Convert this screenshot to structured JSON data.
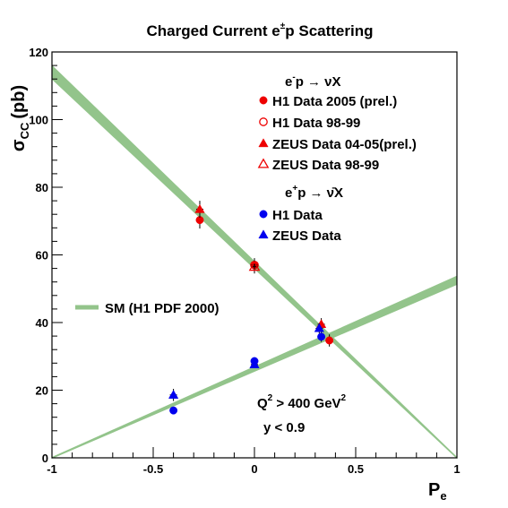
{
  "chart_data": {
    "type": "scatter",
    "title_main": "Charged Current e",
    "title_sup": "±",
    "title_rest": "p Scattering",
    "xlabel_main": "P",
    "xlabel_sub": "e",
    "ylabel_main": "σ",
    "ylabel_sub": "CC",
    "ylabel_unit": "(pb)",
    "xlim": [
      -1,
      1
    ],
    "ylim": [
      0,
      120
    ],
    "xticks": [
      {
        "value": -1,
        "label": "-1"
      },
      {
        "value": -0.5,
        "label": "-0.5"
      },
      {
        "value": 0,
        "label": "0"
      },
      {
        "value": 0.5,
        "label": "0.5"
      },
      {
        "value": 1,
        "label": "1"
      }
    ],
    "yticks": [
      {
        "value": 0,
        "label": "0"
      },
      {
        "value": 20,
        "label": "20"
      },
      {
        "value": 40,
        "label": "40"
      },
      {
        "value": 60,
        "label": "60"
      },
      {
        "value": 80,
        "label": "80"
      },
      {
        "value": 100,
        "label": "100"
      },
      {
        "value": 120,
        "label": "120"
      }
    ],
    "sm_band_label": "SM (H1 PDF 2000)",
    "sm_band_color": "#93c48b",
    "sm_bands": [
      {
        "points": [
          [
            -1,
            114
          ],
          [
            1,
            0
          ]
        ],
        "width_at_start": 4,
        "width_at_end": 0.3
      },
      {
        "points": [
          [
            -1,
            0
          ],
          [
            1,
            52.5
          ]
        ],
        "width_at_start": 0.3,
        "width_at_end": 2.5
      }
    ],
    "legend_header_eminus": {
      "pre": "e",
      "sup": "-",
      "rest": "p → νX"
    },
    "legend_header_eplus": {
      "pre": "e",
      "sup": "+",
      "rest": "p → ν̄X"
    },
    "series": [
      {
        "name": "H1 Data 2005 (prel.)",
        "marker": "circle",
        "filled": true,
        "color": "#ee0000",
        "points": [
          {
            "x": -0.27,
            "y": 70.3,
            "err": 2.5
          },
          {
            "x": 0.0,
            "y": 57.0,
            "err": 2.0
          },
          {
            "x": 0.37,
            "y": 34.7,
            "err": 1.8
          }
        ]
      },
      {
        "name": "H1 Data 98-99",
        "marker": "circle",
        "filled": false,
        "color": "#ee0000",
        "points": [
          {
            "x": 0.0,
            "y": 57.0,
            "err": 2.0
          }
        ]
      },
      {
        "name": "ZEUS Data 04-05(prel.)",
        "marker": "triangle",
        "filled": true,
        "color": "#ee0000",
        "points": [
          {
            "x": -0.27,
            "y": 73.5,
            "err": 2.5
          },
          {
            "x": 0.33,
            "y": 39.5,
            "err": 1.8
          }
        ]
      },
      {
        "name": "ZEUS Data 98-99",
        "marker": "triangle",
        "filled": false,
        "color": "#ee0000",
        "points": [
          {
            "x": 0.0,
            "y": 56.5,
            "err": 2.0
          }
        ]
      },
      {
        "name": "H1 Data",
        "marker": "circle",
        "filled": true,
        "color": "#0000ee",
        "points": [
          {
            "x": -0.4,
            "y": 14.0,
            "err": 0.8
          },
          {
            "x": 0.0,
            "y": 28.6,
            "err": 0.9
          },
          {
            "x": 0.33,
            "y": 35.8,
            "err": 1.5
          }
        ]
      },
      {
        "name": "ZEUS Data",
        "marker": "triangle",
        "filled": true,
        "color": "#0000ee",
        "points": [
          {
            "x": -0.4,
            "y": 18.6,
            "err": 1.8
          },
          {
            "x": 0.0,
            "y": 27.6,
            "err": 0.9
          },
          {
            "x": 0.32,
            "y": 38.3,
            "err": 1.5
          }
        ]
      }
    ],
    "annotation_q2": {
      "pre": "Q",
      "sup": "2",
      "mid": " > 400 GeV",
      "sup2": "2"
    },
    "annotation_y": "y < 0.9",
    "grid": false,
    "legend_position": "top-right"
  }
}
